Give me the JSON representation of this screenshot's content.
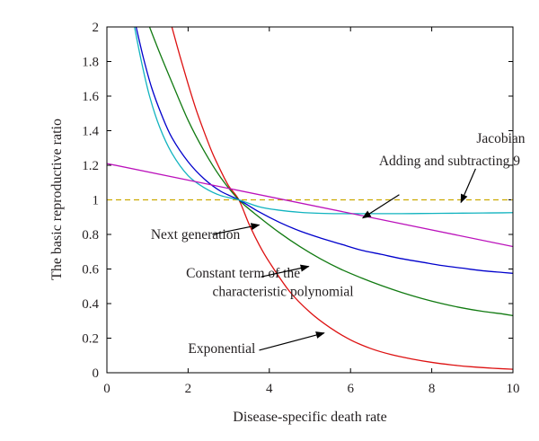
{
  "chart_data": {
    "type": "line",
    "title": "",
    "xlabel": "Disease-specific death rate",
    "ylabel": "The basic reproductive ratio",
    "xlim": [
      0,
      10
    ],
    "ylim": [
      0,
      2
    ],
    "xticks": [
      "0",
      "2",
      "4",
      "6",
      "8",
      "10"
    ],
    "yticks": [
      "0",
      "0.2",
      "0.4",
      "0.6",
      "0.8",
      "1",
      "1.2",
      "1.4",
      "1.6",
      "1.8",
      "2"
    ],
    "grid": false,
    "legend": "none",
    "series": [
      {
        "color": "#dd1111",
        "x": [
          1.6,
          1.8,
          2.0,
          2.2,
          2.4,
          2.6,
          2.8,
          3.0,
          3.25,
          3.5,
          3.75,
          4.0,
          4.5,
          5.0,
          5.5,
          6.0,
          6.5,
          7.0,
          7.5,
          8.0,
          8.5,
          9.0,
          9.5,
          10.0
        ],
        "y": [
          2.0,
          1.83,
          1.67,
          1.52,
          1.39,
          1.27,
          1.17,
          1.08,
          1.0,
          0.86,
          0.74,
          0.64,
          0.47,
          0.35,
          0.26,
          0.19,
          0.14,
          0.105,
          0.08,
          0.06,
          0.045,
          0.034,
          0.026,
          0.02
        ]
      },
      {
        "color": "#117a11",
        "x": [
          1.05,
          1.3,
          1.6,
          2.0,
          2.4,
          2.8,
          3.25,
          3.75,
          4.25,
          4.75,
          5.25,
          5.75,
          6.25,
          6.75,
          7.25,
          7.75,
          8.25,
          8.75,
          9.25,
          9.75,
          10.0
        ],
        "y": [
          2.0,
          1.85,
          1.68,
          1.46,
          1.28,
          1.13,
          1.0,
          0.9,
          0.81,
          0.73,
          0.66,
          0.6,
          0.55,
          0.505,
          0.465,
          0.43,
          0.4,
          0.375,
          0.355,
          0.34,
          0.33
        ]
      },
      {
        "color": "#0000cc",
        "x": [
          0.72,
          0.9,
          1.1,
          1.35,
          1.6,
          2.0,
          2.4,
          2.8,
          3.25,
          3.75,
          4.25,
          4.75,
          5.25,
          5.75,
          6.25,
          6.75,
          7.25,
          7.75,
          8.25,
          8.75,
          9.25,
          9.75,
          10.0
        ],
        "y": [
          2.0,
          1.82,
          1.65,
          1.49,
          1.36,
          1.22,
          1.12,
          1.05,
          1.0,
          0.93,
          0.87,
          0.82,
          0.78,
          0.745,
          0.71,
          0.685,
          0.66,
          0.64,
          0.62,
          0.605,
          0.59,
          0.58,
          0.575
        ]
      },
      {
        "color": "#11b3bf",
        "x": [
          0.68,
          0.85,
          1.05,
          1.3,
          1.6,
          2.0,
          2.4,
          2.8,
          3.25,
          3.75,
          4.25,
          4.75,
          5.25,
          5.75,
          6.25,
          6.75,
          7.25,
          7.75,
          8.25,
          8.75,
          9.25,
          9.75,
          10.0
        ],
        "y": [
          2.0,
          1.8,
          1.6,
          1.42,
          1.27,
          1.14,
          1.07,
          1.025,
          1.0,
          0.96,
          0.94,
          0.928,
          0.922,
          0.92,
          0.92,
          0.92,
          0.92,
          0.921,
          0.922,
          0.923,
          0.924,
          0.925,
          0.926
        ]
      },
      {
        "color": "#bb11bb",
        "x": [
          0,
          10
        ],
        "y": [
          1.21,
          0.73
        ]
      },
      {
        "color": "#ccaa00",
        "dashed": true,
        "x": [
          0,
          10
        ],
        "y": [
          1,
          1
        ]
      }
    ],
    "annotations": [
      {
        "text": "Jacobian",
        "tx": 9.1,
        "ty": 1.33,
        "ax": 8.72,
        "ay": 0.985
      },
      {
        "text": "Adding and subtracting 9",
        "tx": 6.7,
        "ty": 1.2,
        "ax": 6.3,
        "ay": 0.895
      },
      {
        "text": "Next  generation",
        "tx": 1.08,
        "ty": 0.775,
        "ax": 3.75,
        "ay": 0.855
      },
      {
        "text": "Constant term of the",
        "tx": 1.95,
        "ty": 0.55,
        "ax": 4.97,
        "ay": 0.615
      },
      {
        "text": "characteristic polynomial",
        "tx": 2.6,
        "ty": 0.445
      },
      {
        "text": "Exponential",
        "tx": 2.0,
        "ty": 0.115,
        "ax": 5.35,
        "ay": 0.23
      }
    ]
  }
}
